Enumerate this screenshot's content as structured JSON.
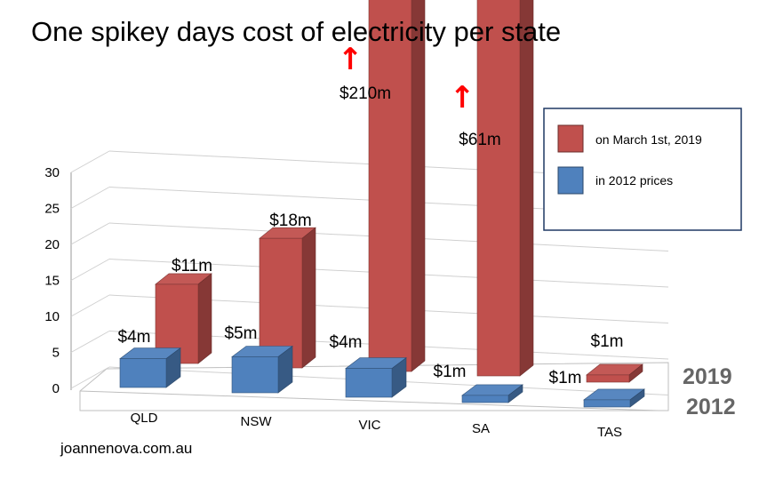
{
  "chart_data": {
    "type": "bar",
    "title": "One spikey days cost of electricity per state",
    "categories": [
      "QLD",
      "NSW",
      "VIC",
      "SA",
      "TAS"
    ],
    "ylim": [
      0,
      30
    ],
    "yticks": [
      0,
      5,
      10,
      15,
      20,
      25,
      30
    ],
    "grid": true,
    "legend_position": "top-right",
    "series": [
      {
        "name": "on March 1st, 2019",
        "depth_label": "2019",
        "color": "#c0504d",
        "values": [
          11,
          18,
          210,
          61,
          1
        ],
        "data_labels": [
          "$11m",
          "$18m",
          "$210m",
          "$61m",
          "$1m"
        ],
        "overflow_marker": [
          "",
          "",
          "↑",
          "↑",
          ""
        ]
      },
      {
        "name": "in 2012 prices",
        "depth_label": "2012",
        "color": "#4f81bd",
        "values": [
          4,
          5,
          4,
          1,
          1
        ],
        "data_labels": [
          "$4m",
          "$5m",
          "$4m",
          "$1m",
          "$1m"
        ]
      }
    ],
    "source": "joannenova.com.au"
  }
}
